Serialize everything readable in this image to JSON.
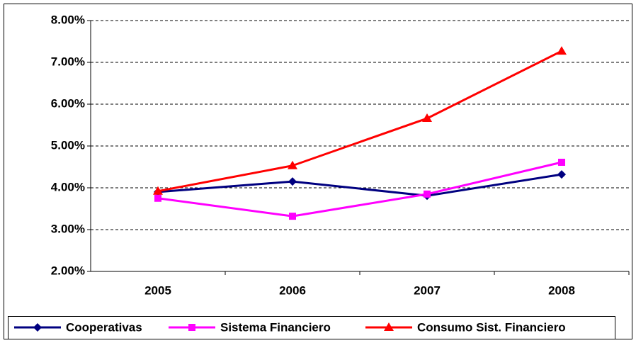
{
  "chart_data": {
    "type": "line",
    "categories": [
      "2005",
      "2006",
      "2007",
      "2008"
    ],
    "series": [
      {
        "name": "Cooperativas",
        "color": "#000080",
        "marker": "diamond",
        "values": [
          3.9,
          4.15,
          3.81,
          4.32
        ]
      },
      {
        "name": "Sistema Financiero",
        "color": "#ff00ff",
        "marker": "square",
        "values": [
          3.75,
          3.32,
          3.85,
          4.61
        ]
      },
      {
        "name": "Consumo Sist. Financiero",
        "color": "#ff0000",
        "marker": "triangle",
        "values": [
          3.92,
          4.53,
          5.66,
          7.27
        ]
      }
    ],
    "ylim": [
      2,
      8
    ],
    "yticks": [
      {
        "value": 2,
        "label": "2.00%"
      },
      {
        "value": 3,
        "label": "3.00%"
      },
      {
        "value": 4,
        "label": "4.00%"
      },
      {
        "value": 5,
        "label": "5.00%"
      },
      {
        "value": 6,
        "label": "6.00%"
      },
      {
        "value": 7,
        "label": "7.00%"
      },
      {
        "value": 8,
        "label": "8.00%"
      }
    ],
    "grid": true,
    "legend": "bottom"
  }
}
